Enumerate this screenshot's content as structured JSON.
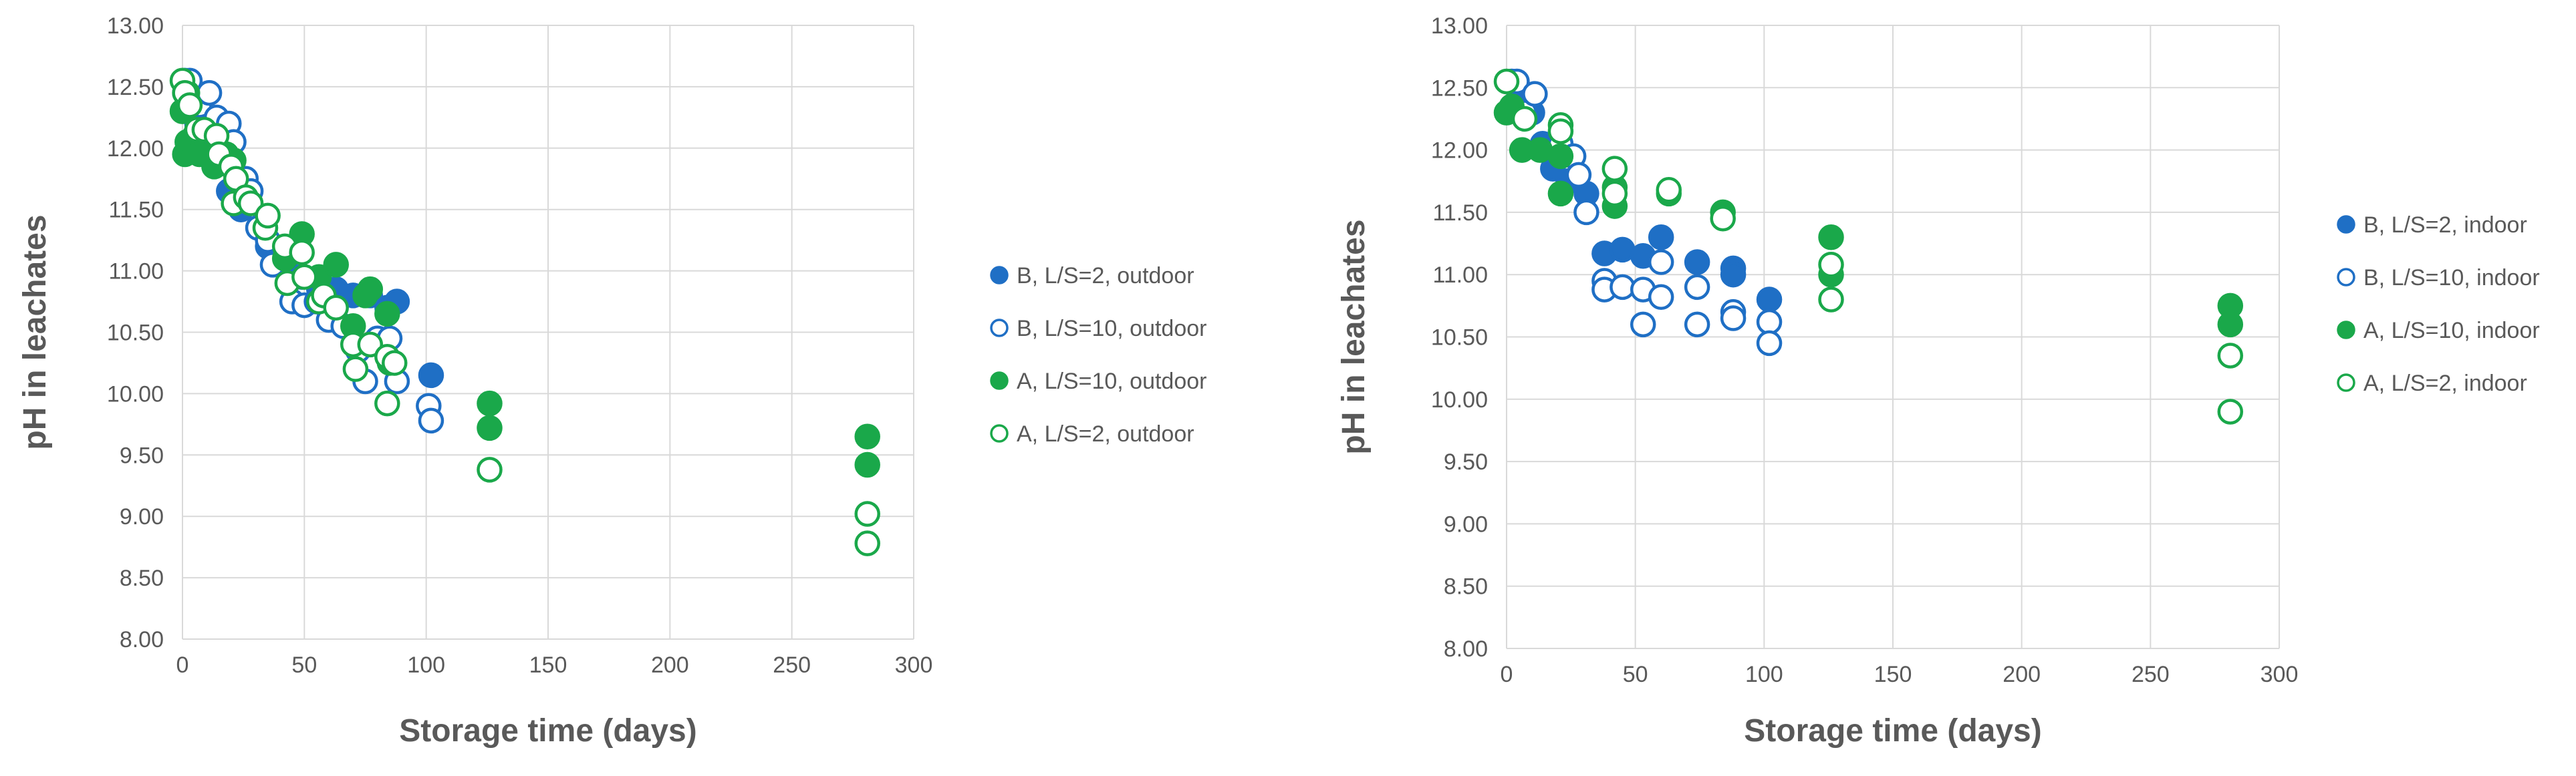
{
  "chart_data": [
    {
      "type": "scatter",
      "xlabel": "Storage time (days)",
      "ylabel": "pH in leachates",
      "xlim": [
        0,
        300
      ],
      "ylim": [
        8.0,
        13.0
      ],
      "x_ticks": [
        "0",
        "50",
        "100",
        "150",
        "200",
        "250",
        "300"
      ],
      "y_ticks": [
        "8.00",
        "8.50",
        "9.00",
        "9.50",
        "10.00",
        "10.50",
        "11.00",
        "11.50",
        "12.00",
        "12.50",
        "13.00"
      ],
      "grid": true,
      "legend_position": "right",
      "series": [
        {
          "name": "B, L/S=2, outdoor",
          "color": "#1f6fc5",
          "filled": true,
          "points": [
            [
              1,
              12.45
            ],
            [
              3,
              12.5
            ],
            [
              6,
              12.2
            ],
            [
              10,
              12.1
            ],
            [
              14,
              11.95
            ],
            [
              19,
              11.65
            ],
            [
              24,
              11.5
            ],
            [
              35,
              11.2
            ],
            [
              38,
              11.1
            ],
            [
              42,
              11.05
            ],
            [
              49,
              10.95
            ],
            [
              56,
              10.85
            ],
            [
              63,
              10.85
            ],
            [
              70,
              10.8
            ],
            [
              77,
              10.8
            ],
            [
              84,
              10.7
            ],
            [
              88,
              10.75
            ],
            [
              102,
              10.15
            ]
          ]
        },
        {
          "name": "B, L/S=10, outdoor",
          "color": "#1f6fc5",
          "filled": false,
          "points": [
            [
              1,
              12.55
            ],
            [
              3,
              12.55
            ],
            [
              7,
              12.35
            ],
            [
              11,
              12.45
            ],
            [
              14,
              12.25
            ],
            [
              19,
              12.2
            ],
            [
              21,
              12.05
            ],
            [
              26,
              11.75
            ],
            [
              28,
              11.65
            ],
            [
              31,
              11.35
            ],
            [
              35,
              11.25
            ],
            [
              37,
              11.05
            ],
            [
              45,
              10.75
            ],
            [
              50,
              10.72
            ],
            [
              55,
              10.75
            ],
            [
              60,
              10.6
            ],
            [
              66,
              10.55
            ],
            [
              72,
              10.35
            ],
            [
              75,
              10.1
            ],
            [
              80,
              10.45
            ],
            [
              85,
              10.45
            ],
            [
              88,
              10.1
            ],
            [
              101,
              9.9
            ],
            [
              102,
              9.78
            ]
          ]
        },
        {
          "name": "A, L/S=10, outdoor",
          "color": "#1aa84a",
          "filled": true,
          "points": [
            [
              0,
              12.3
            ],
            [
              1,
              11.95
            ],
            [
              2,
              12.05
            ],
            [
              2,
              12.45
            ],
            [
              5,
              12.1
            ],
            [
              7,
              11.95
            ],
            [
              13,
              11.85
            ],
            [
              18,
              11.95
            ],
            [
              21,
              11.9
            ],
            [
              42,
              11.1
            ],
            [
              49,
              11.3
            ],
            [
              56,
              10.95
            ],
            [
              63,
              11.05
            ],
            [
              70,
              10.55
            ],
            [
              75,
              10.8
            ],
            [
              77,
              10.85
            ],
            [
              84,
              10.65
            ],
            [
              85,
              10.25
            ],
            [
              126,
              9.92
            ],
            [
              126,
              9.72
            ],
            [
              281,
              9.65
            ],
            [
              281,
              9.42
            ]
          ]
        },
        {
          "name": "A, L/S=2, outdoor",
          "color": "#1aa84a",
          "filled": false,
          "points": [
            [
              0,
              12.55
            ],
            [
              1,
              12.45
            ],
            [
              3,
              12.35
            ],
            [
              6,
              12.15
            ],
            [
              9,
              12.15
            ],
            [
              14,
              12.1
            ],
            [
              15,
              11.95
            ],
            [
              20,
              11.85
            ],
            [
              21,
              11.55
            ],
            [
              22,
              11.75
            ],
            [
              26,
              11.6
            ],
            [
              28,
              11.55
            ],
            [
              34,
              11.35
            ],
            [
              35,
              11.45
            ],
            [
              42,
              11.2
            ],
            [
              43,
              10.9
            ],
            [
              49,
              11.15
            ],
            [
              50,
              10.95
            ],
            [
              56,
              10.75
            ],
            [
              58,
              10.8
            ],
            [
              63,
              10.7
            ],
            [
              70,
              10.4
            ],
            [
              71,
              10.2
            ],
            [
              77,
              10.4
            ],
            [
              84,
              10.3
            ],
            [
              84,
              9.92
            ],
            [
              87,
              10.25
            ],
            [
              126,
              9.38
            ],
            [
              281,
              9.02
            ],
            [
              281,
              8.78
            ]
          ]
        }
      ]
    },
    {
      "type": "scatter",
      "xlabel": "Storage time (days)",
      "ylabel": "pH in leachates",
      "xlim": [
        0,
        300
      ],
      "ylim": [
        8.0,
        13.0
      ],
      "x_ticks": [
        "0",
        "50",
        "100",
        "150",
        "200",
        "250",
        "300"
      ],
      "y_ticks": [
        "8.00",
        "8.50",
        "9.00",
        "9.50",
        "10.00",
        "10.50",
        "11.00",
        "11.50",
        "12.00",
        "12.50",
        "13.00"
      ],
      "grid": true,
      "legend_position": "right",
      "series": [
        {
          "name": "B, L/S=2, indoor",
          "color": "#1f6fc5",
          "filled": true,
          "points": [
            [
              2,
              12.55
            ],
            [
              5,
              12.45
            ],
            [
              10,
              12.3
            ],
            [
              14,
              12.05
            ],
            [
              18,
              11.85
            ],
            [
              24,
              11.75
            ],
            [
              31,
              11.65
            ],
            [
              38,
              11.17
            ],
            [
              45,
              11.2
            ],
            [
              53,
              11.15
            ],
            [
              60,
              11.3
            ],
            [
              74,
              11.1
            ],
            [
              88,
              11.05
            ],
            [
              88,
              11.0
            ],
            [
              102,
              10.8
            ]
          ]
        },
        {
          "name": "B, L/S=10, indoor",
          "color": "#1f6fc5",
          "filled": false,
          "points": [
            [
              4,
              12.55
            ],
            [
              7,
              12.3
            ],
            [
              11,
              12.45
            ],
            [
              21,
              12.05
            ],
            [
              26,
              11.95
            ],
            [
              28,
              11.8
            ],
            [
              31,
              11.5
            ],
            [
              38,
              10.95
            ],
            [
              38,
              10.88
            ],
            [
              45,
              10.9
            ],
            [
              53,
              10.6
            ],
            [
              53,
              10.88
            ],
            [
              60,
              11.1
            ],
            [
              60,
              10.82
            ],
            [
              74,
              10.9
            ],
            [
              74,
              10.6
            ],
            [
              88,
              10.7
            ],
            [
              88,
              10.65
            ],
            [
              102,
              10.62
            ],
            [
              102,
              10.45
            ]
          ]
        },
        {
          "name": "A, L/S=10, indoor",
          "color": "#1aa84a",
          "filled": true,
          "points": [
            [
              0,
              12.3
            ],
            [
              2,
              12.35
            ],
            [
              6,
              12.0
            ],
            [
              13,
              12.0
            ],
            [
              21,
              11.95
            ],
            [
              21,
              11.65
            ],
            [
              42,
              11.55
            ],
            [
              42,
              11.7
            ],
            [
              63,
              11.65
            ],
            [
              84,
              11.5
            ],
            [
              126,
              11.3
            ],
            [
              126,
              11.0
            ],
            [
              281,
              10.75
            ],
            [
              281,
              10.6
            ]
          ]
        },
        {
          "name": "A, L/S=2, indoor",
          "color": "#1aa84a",
          "filled": false,
          "points": [
            [
              0,
              12.55
            ],
            [
              7,
              12.25
            ],
            [
              21,
              12.2
            ],
            [
              21,
              12.15
            ],
            [
              42,
              11.85
            ],
            [
              42,
              11.65
            ],
            [
              63,
              11.68
            ],
            [
              84,
              11.45
            ],
            [
              126,
              11.08
            ],
            [
              126,
              10.8
            ],
            [
              281,
              10.35
            ],
            [
              281,
              9.9
            ]
          ]
        }
      ]
    }
  ]
}
